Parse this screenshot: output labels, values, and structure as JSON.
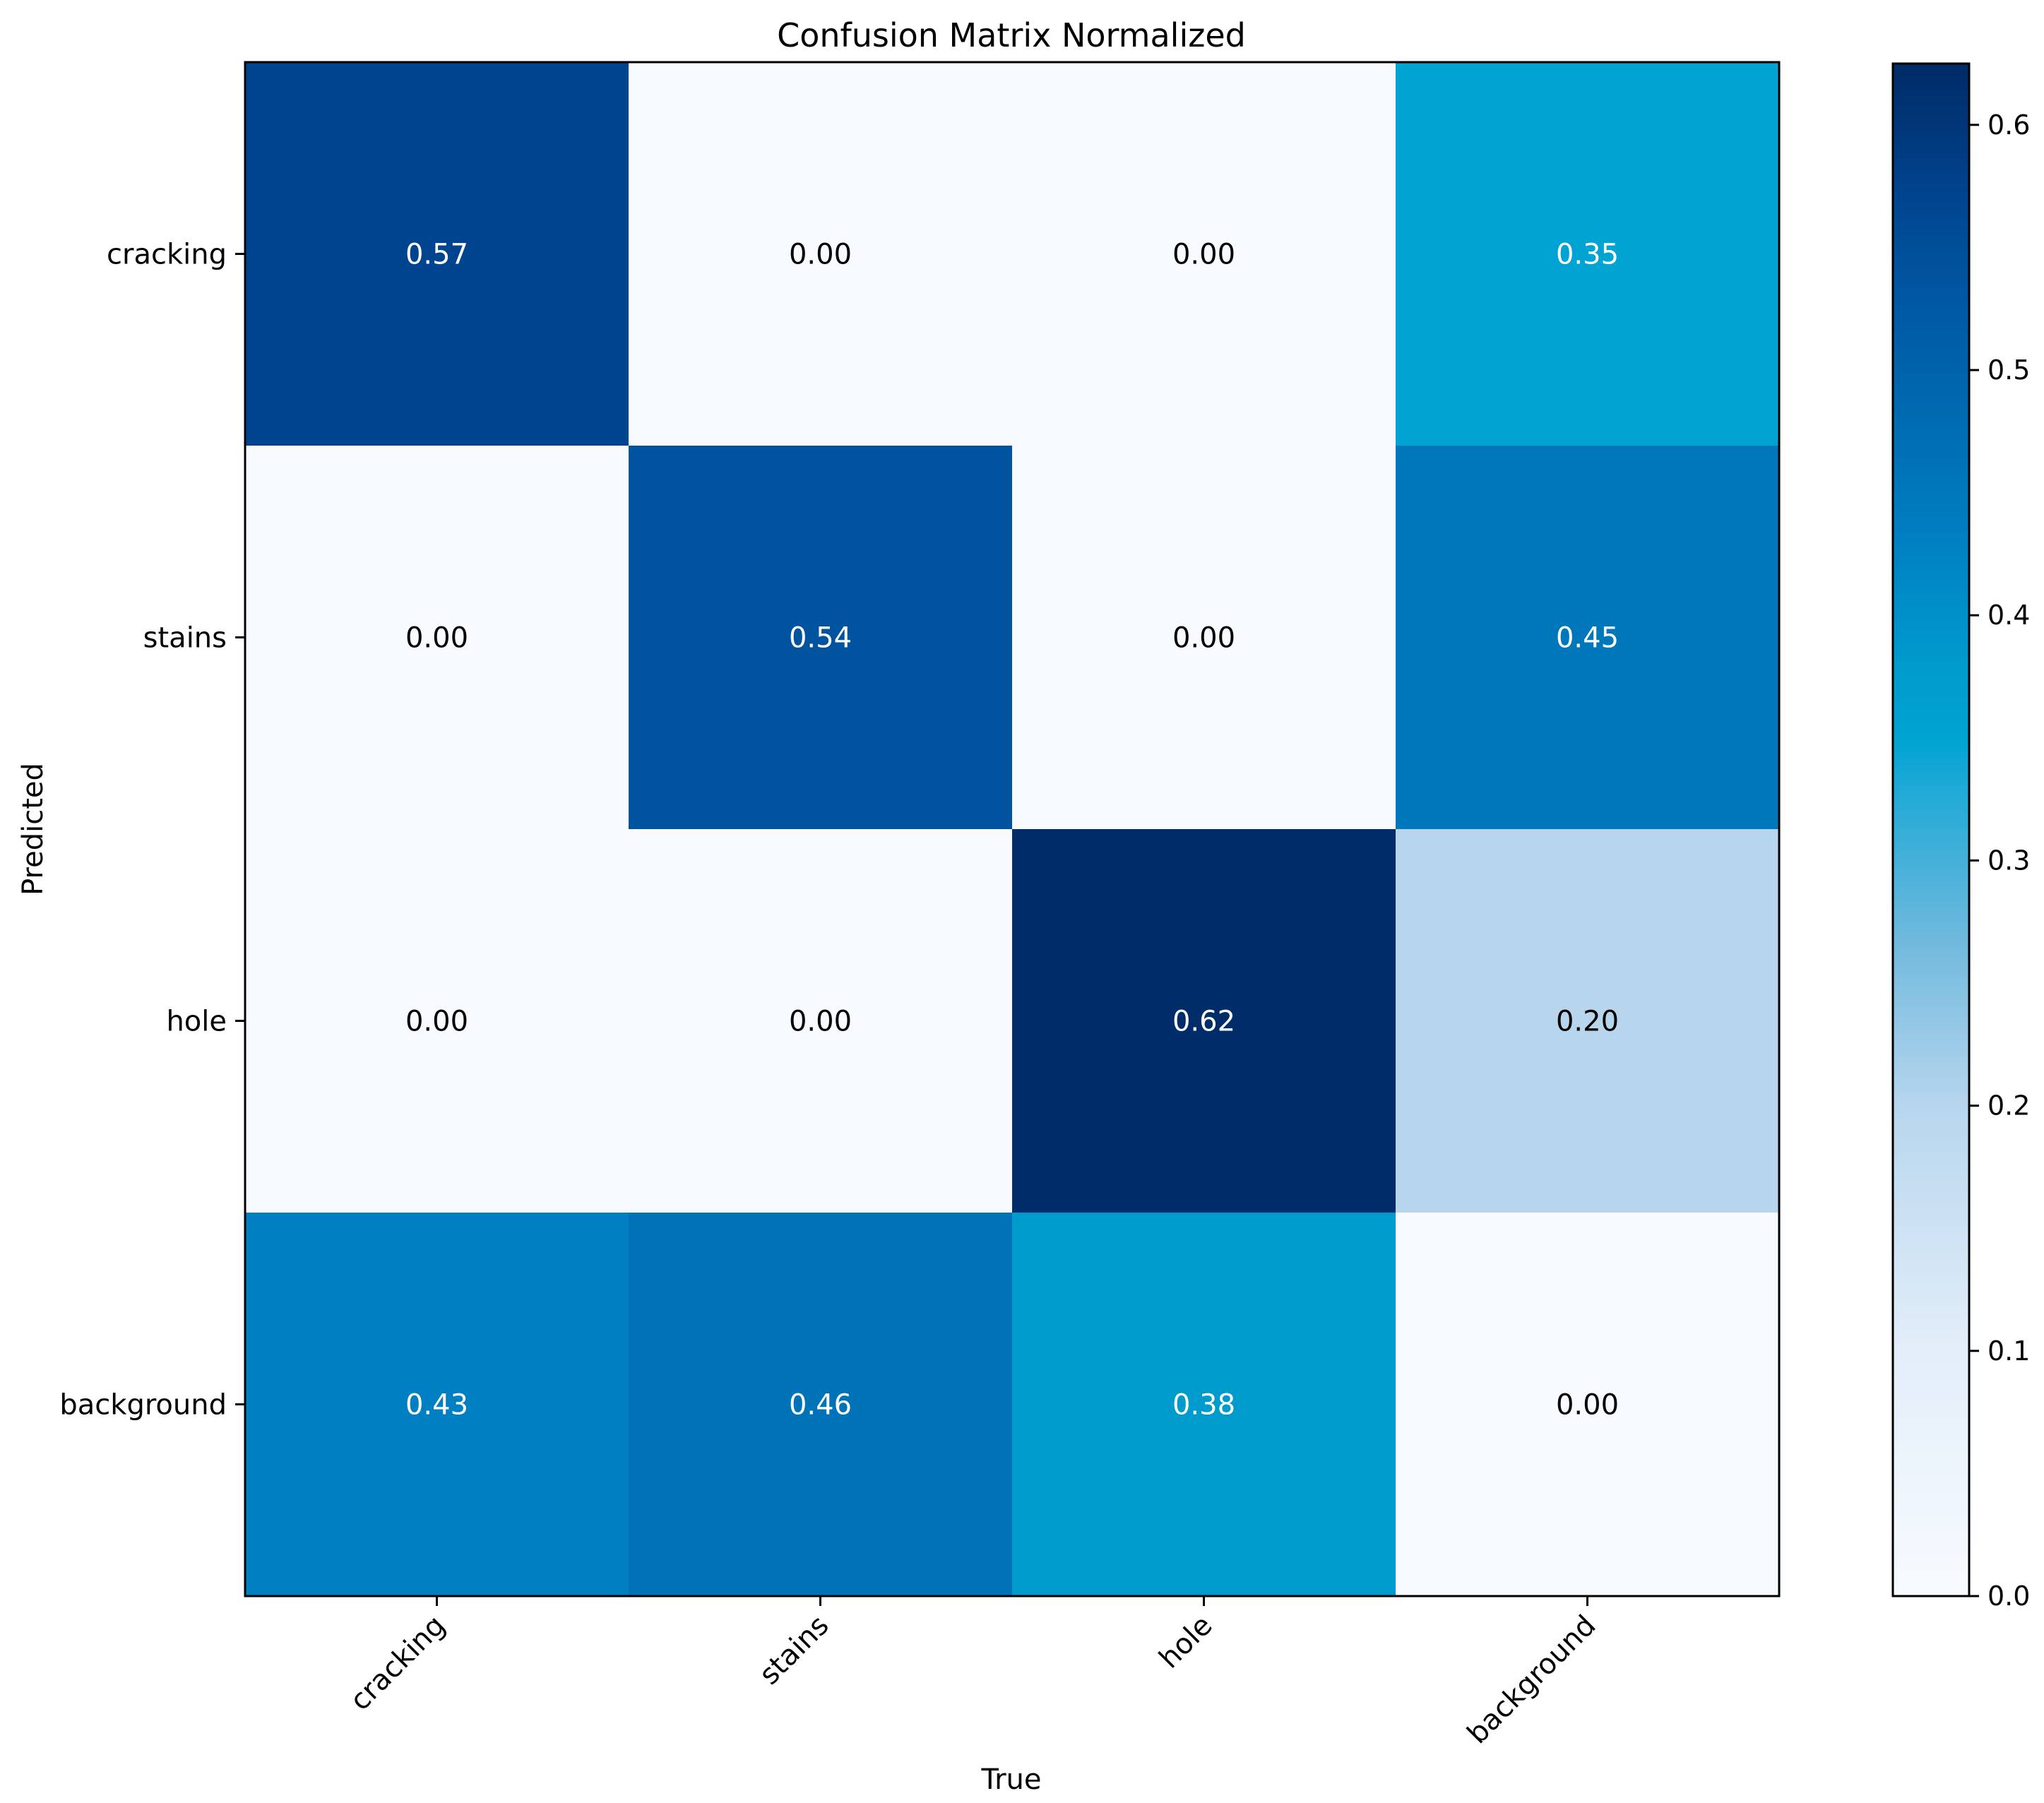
{
  "chart_data": {
    "type": "heatmap",
    "title": "Confusion Matrix Normalized",
    "xlabel": "True",
    "ylabel": "Predicted",
    "x_categories": [
      "cracking",
      "stains",
      "hole",
      "background"
    ],
    "y_categories": [
      "cracking",
      "stains",
      "hole",
      "background"
    ],
    "matrix": [
      [
        0.57,
        0.0,
        0.0,
        0.35
      ],
      [
        0.0,
        0.54,
        0.0,
        0.45
      ],
      [
        0.0,
        0.0,
        0.62,
        0.2
      ],
      [
        0.43,
        0.46,
        0.38,
        0.0
      ]
    ],
    "value_labels": [
      [
        "0.57",
        "0.00",
        "0.00",
        "0.35"
      ],
      [
        "0.00",
        "0.54",
        "0.00",
        "0.45"
      ],
      [
        "0.00",
        "0.00",
        "0.62",
        "0.20"
      ],
      [
        "0.43",
        "0.46",
        "0.38",
        "0.00"
      ]
    ],
    "colormap": "Blues",
    "vmin": 0.0,
    "vmax": 0.625,
    "colorbar_ticks": [
      0.0,
      0.1,
      0.2,
      0.3,
      0.4,
      0.5,
      0.6
    ],
    "colorbar_tick_labels": [
      "0.0",
      "0.1",
      "0.2",
      "0.3",
      "0.4",
      "0.5",
      "0.6"
    ],
    "colormap_stops": [
      {
        "v": 0.0,
        "color": "#f7fbff"
      },
      {
        "v": 0.1,
        "color": "#e3eef9"
      },
      {
        "v": 0.2,
        "color": "#b7d6ee"
      },
      {
        "v": 0.27,
        "color": "#6db8dc"
      },
      {
        "v": 0.33,
        "color": "#1ea9d6"
      },
      {
        "v": 0.35,
        "color": "#00a3d2"
      },
      {
        "v": 0.38,
        "color": "#009bcd"
      },
      {
        "v": 0.43,
        "color": "#0080c2"
      },
      {
        "v": 0.46,
        "color": "#0073b8"
      },
      {
        "v": 0.54,
        "color": "#00539e"
      },
      {
        "v": 0.57,
        "color": "#00448f"
      },
      {
        "v": 0.625,
        "color": "#002b66"
      }
    ],
    "grid": false
  }
}
